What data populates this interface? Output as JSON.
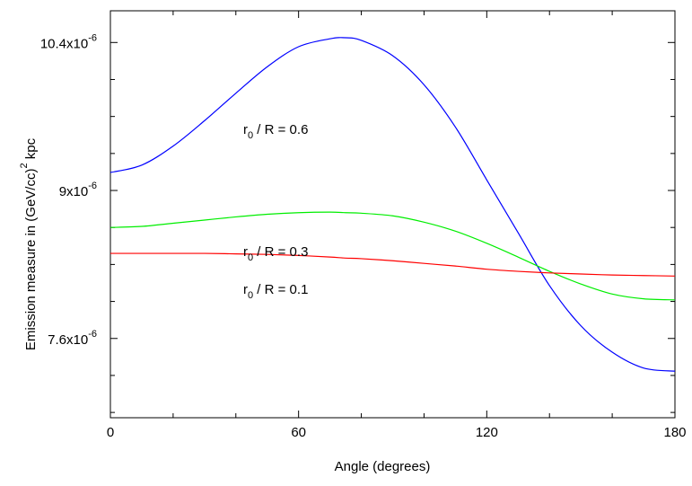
{
  "chart_data": {
    "type": "line",
    "title": "",
    "xlabel": "Angle (degrees)",
    "ylabel": {
      "text": "Emission measure in  (GeV/cc)",
      "superscript": "2",
      "unit": " kpc"
    },
    "xlim": [
      0,
      180
    ],
    "ylim": [
      6.85e-06,
      1.07e-05
    ],
    "grid": false,
    "legend": "none",
    "x_ticks": [
      {
        "value": 0,
        "label": "0"
      },
      {
        "value": 60,
        "label": "60"
      },
      {
        "value": 120,
        "label": "120"
      },
      {
        "value": 180,
        "label": "180"
      }
    ],
    "y_ticks": [
      {
        "value": 7.6e-06,
        "mantissa": "7.6x10",
        "exponent": "-6"
      },
      {
        "value": 9e-06,
        "mantissa": "9x10",
        "exponent": "-6"
      },
      {
        "value": 1.04e-05,
        "mantissa": "10.4x10",
        "exponent": "-6"
      }
    ],
    "x": [
      0,
      10,
      20,
      30,
      40,
      50,
      60,
      70,
      75,
      80,
      90,
      100,
      110,
      120,
      130,
      140,
      150,
      160,
      170,
      180
    ],
    "series": [
      {
        "color": "#0000ff",
        "values": [
          9.17e-06,
          9.24e-06,
          9.42e-06,
          9.66e-06,
          9.92e-06,
          1.017e-05,
          1.036e-05,
          1.0435e-05,
          1.0445e-05,
          1.042e-05,
          1.0275e-05,
          1e-05,
          9.6e-06,
          9.1e-06,
          8.6e-06,
          8.1e-06,
          7.72e-06,
          7.47e-06,
          7.32e-06,
          7.29e-06
        ],
        "annotation": {
          "base": "r",
          "sub": "0",
          "text": " / R = 0.6"
        }
      },
      {
        "color": "#00ee00",
        "values": [
          8.65e-06,
          8.66e-06,
          8.69e-06,
          8.72e-06,
          8.75e-06,
          8.775e-06,
          8.79e-06,
          8.795e-06,
          8.79e-06,
          8.785e-06,
          8.76e-06,
          8.7e-06,
          8.615e-06,
          8.5e-06,
          8.37e-06,
          8.235e-06,
          8.115e-06,
          8.02e-06,
          7.975e-06,
          7.965e-06
        ],
        "annotation": {
          "base": "r",
          "sub": "0",
          "text": " / R = 0.3"
        }
      },
      {
        "color": "#ff0000",
        "values": [
          8.405e-06,
          8.405e-06,
          8.405e-06,
          8.405e-06,
          8.4e-06,
          8.395e-06,
          8.385e-06,
          8.37e-06,
          8.36e-06,
          8.355e-06,
          8.335e-06,
          8.31e-06,
          8.285e-06,
          8.255e-06,
          8.235e-06,
          8.22e-06,
          8.21e-06,
          8.2e-06,
          8.195e-06,
          8.19e-06
        ],
        "annotation": {
          "base": "r",
          "sub": "0",
          "text": " / R = 0.1"
        }
      }
    ]
  }
}
